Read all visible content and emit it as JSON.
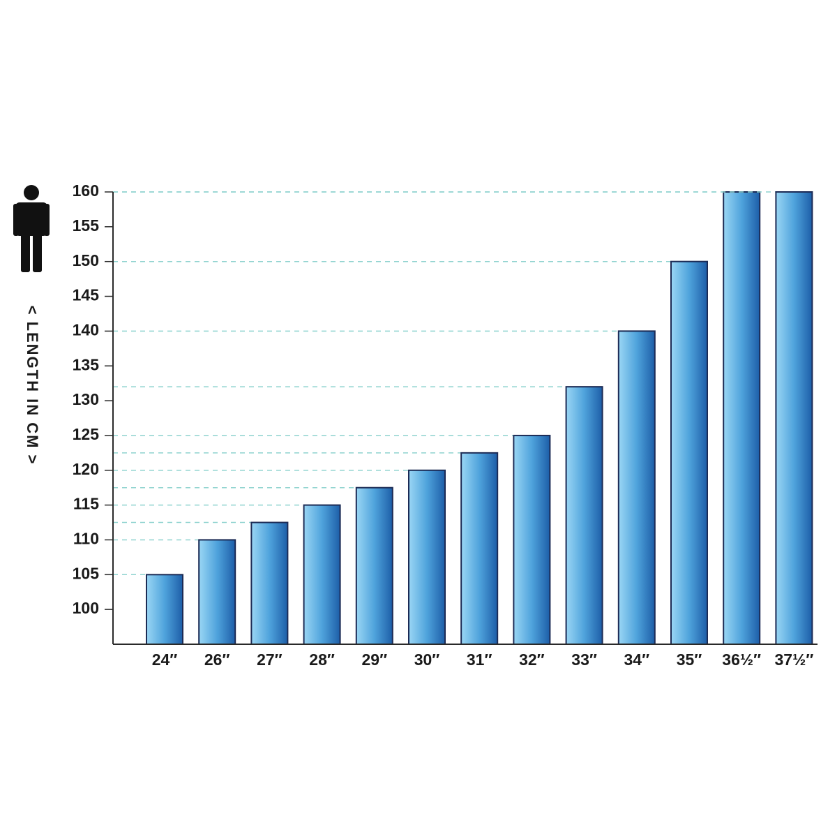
{
  "chart_data": {
    "type": "bar",
    "y_label": "< LENGTH IN CM >",
    "categories": [
      "24″",
      "26″",
      "27″",
      "28″",
      "29″",
      "30″",
      "31″",
      "32″",
      "33″",
      "34″",
      "35″",
      "36½″",
      "37½″"
    ],
    "values": [
      105,
      110,
      112.5,
      115,
      117.5,
      120,
      122.5,
      125,
      132,
      140,
      150,
      160,
      160
    ],
    "color": "#2f7cc4",
    "ylim": [
      95,
      160
    ],
    "yticks": [
      100,
      105,
      110,
      115,
      120,
      125,
      130,
      135,
      140,
      145,
      150,
      155,
      160
    ]
  }
}
